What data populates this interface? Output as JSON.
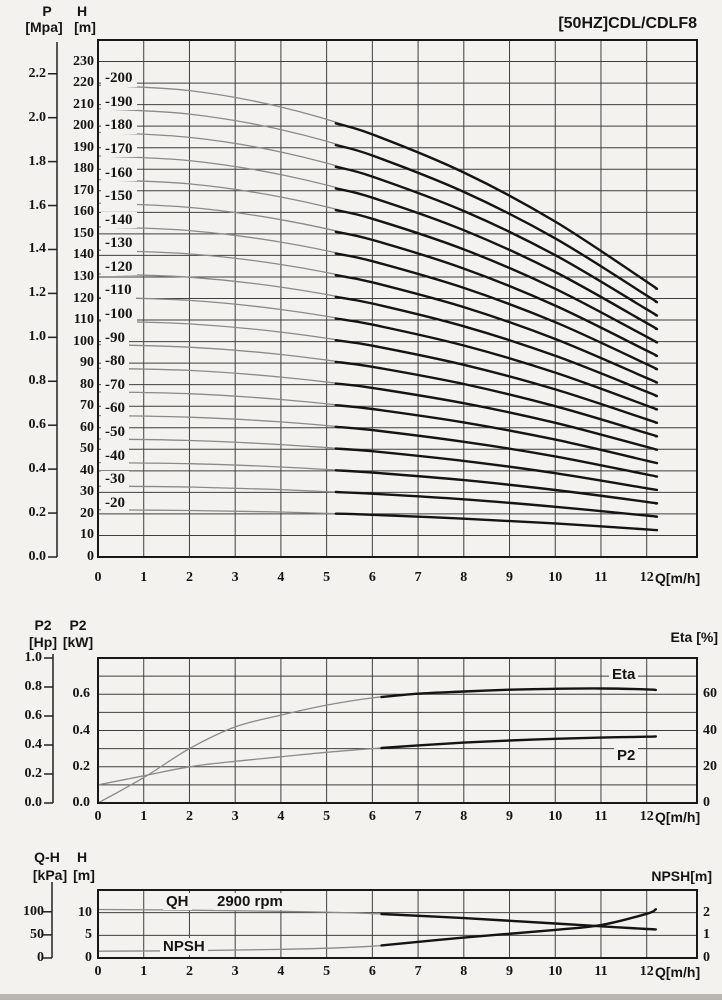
{
  "header": {
    "title": "[50HZ]CDL/CDLF8"
  },
  "colors": {
    "ink": "#141414",
    "grid": "#3f3f3f",
    "thin_curve": "#8a8a8a",
    "bold_curve": "#141414",
    "paper": "#f3f2ef"
  },
  "axes": {
    "q_label": "Q[m/h]",
    "q_ticks": [
      "0",
      "1",
      "2",
      "3",
      "4",
      "5",
      "6",
      "7",
      "8",
      "9",
      "10",
      "11",
      "12"
    ],
    "hq": {
      "p_label": "P",
      "p_unit": "[Mpa]",
      "p_ticks": [
        "0.0",
        "0.2",
        "0.4",
        "0.6",
        "0.8",
        "1.0",
        "1.2",
        "1.4",
        "1.6",
        "1.8",
        "2.0",
        "2.2"
      ],
      "h_label": "H",
      "h_unit": "[m]",
      "h_ticks": [
        "0",
        "10",
        "20",
        "30",
        "40",
        "50",
        "60",
        "70",
        "80",
        "90",
        "100",
        "110",
        "120",
        "130",
        "140",
        "150",
        "160",
        "170",
        "180",
        "190",
        "200",
        "210",
        "220",
        "230"
      ]
    },
    "power": {
      "hp_label": "P2",
      "hp_unit": "[Hp]",
      "hp_ticks": [
        "0.0",
        "0.2",
        "0.4",
        "0.6",
        "0.8",
        "1.0"
      ],
      "kw_label": "P2",
      "kw_unit": "[kW]",
      "kw_ticks": [
        "0.0",
        "0.2",
        "0.4",
        "0.6"
      ],
      "eta_label": "Eta [%]",
      "eta_ticks": [
        "0",
        "20",
        "40",
        "60"
      ]
    },
    "npsh": {
      "kpa_label": "Q-H",
      "kpa_unit": "[kPa]",
      "kpa_ticks": [
        "0",
        "50",
        "100"
      ],
      "h_label": "H",
      "h_unit": "[m]",
      "h_ticks": [
        "0",
        "5",
        "10"
      ],
      "npsh_label": "NPSH[m]",
      "npsh_ticks": [
        "0",
        "1",
        "2"
      ]
    }
  },
  "curve_labels": {
    "eta": "Eta",
    "p2": "P2",
    "qh": "QH",
    "rpm": "2900 rpm",
    "npsh": "NPSH"
  },
  "chart_data": [
    {
      "id": "hq",
      "type": "line",
      "title": "[50HZ]CDL/CDLF8",
      "xlabel": "Q[m/h]",
      "xlim": [
        0,
        13.1
      ],
      "x_ticks": [
        0,
        1,
        2,
        3,
        4,
        5,
        6,
        7,
        8,
        9,
        10,
        11,
        12
      ],
      "ylabel": "H [m] (left also P [Mpa])",
      "ylim": [
        0,
        240
      ],
      "grid_step": 10,
      "unit": "m",
      "bold_from_q": 5.2,
      "q": [
        0,
        2,
        4,
        6,
        8,
        10,
        12,
        12.2
      ],
      "series": [
        {
          "name": "-200",
          "values": [
            219.0,
            216.5,
            208.9,
            196.2,
            178.5,
            155.7,
            127.8,
            124.7
          ]
        },
        {
          "name": "-190",
          "values": [
            208.1,
            205.6,
            198.4,
            186.4,
            169.5,
            147.9,
            121.4,
            118.5
          ]
        },
        {
          "name": "-180",
          "values": [
            197.1,
            194.8,
            188.0,
            176.6,
            160.6,
            140.1,
            115.0,
            112.3
          ]
        },
        {
          "name": "-170",
          "values": [
            186.2,
            184.0,
            177.5,
            166.8,
            151.7,
            132.3,
            108.6,
            106.0
          ]
        },
        {
          "name": "-160",
          "values": [
            175.2,
            173.2,
            167.1,
            157.0,
            142.8,
            124.5,
            102.2,
            99.8
          ]
        },
        {
          "name": "-150",
          "values": [
            164.3,
            162.3,
            156.6,
            147.2,
            133.9,
            116.7,
            95.8,
            93.5
          ]
        },
        {
          "name": "-140",
          "values": [
            153.3,
            151.5,
            146.2,
            137.3,
            124.9,
            109.0,
            89.5,
            87.3
          ]
        },
        {
          "name": "-130",
          "values": [
            142.4,
            140.7,
            135.8,
            127.5,
            116.0,
            101.2,
            83.1,
            81.1
          ]
        },
        {
          "name": "-120",
          "values": [
            131.4,
            129.9,
            125.3,
            117.7,
            107.1,
            93.4,
            76.7,
            74.8
          ]
        },
        {
          "name": "-110",
          "values": [
            120.5,
            119.1,
            114.9,
            107.9,
            98.2,
            85.6,
            70.3,
            68.6
          ]
        },
        {
          "name": "-100",
          "values": [
            109.5,
            108.2,
            104.4,
            98.1,
            89.2,
            77.8,
            63.9,
            62.4
          ]
        },
        {
          "name": "-90",
          "values": [
            98.6,
            97.4,
            94.0,
            88.3,
            80.3,
            70.0,
            57.5,
            56.1
          ]
        },
        {
          "name": "-80",
          "values": [
            87.6,
            86.6,
            83.5,
            78.5,
            71.4,
            62.3,
            51.1,
            49.9
          ]
        },
        {
          "name": "-70",
          "values": [
            76.7,
            75.8,
            73.1,
            68.7,
            62.5,
            54.5,
            44.7,
            43.7
          ]
        },
        {
          "name": "-60",
          "values": [
            65.7,
            64.9,
            62.7,
            58.9,
            53.5,
            46.7,
            38.3,
            37.4
          ]
        },
        {
          "name": "-50",
          "values": [
            54.8,
            54.1,
            52.2,
            49.1,
            44.6,
            38.9,
            31.9,
            31.2
          ]
        },
        {
          "name": "-40",
          "values": [
            43.8,
            43.3,
            41.8,
            39.2,
            35.7,
            31.1,
            25.6,
            24.9
          ]
        },
        {
          "name": "-30",
          "values": [
            32.9,
            32.5,
            31.3,
            29.4,
            26.8,
            23.3,
            19.2,
            18.7
          ]
        },
        {
          "name": "-20",
          "values": [
            21.9,
            21.6,
            20.9,
            19.6,
            17.8,
            15.6,
            12.8,
            12.5
          ]
        }
      ]
    },
    {
      "id": "power_eff",
      "type": "line",
      "xlabel": "Q[m/h]",
      "xlim": [
        0,
        13.1
      ],
      "x_ticks": [
        0,
        1,
        2,
        3,
        4,
        5,
        6,
        7,
        8,
        9,
        10,
        11,
        12
      ],
      "ylim_eta": [
        0,
        80
      ],
      "ylim_kw": [
        0,
        0.8
      ],
      "ylim_hp": [
        0,
        1.0
      ],
      "grid_step_eta": 10,
      "bold_from_q": 6.2,
      "q": [
        0,
        1,
        2,
        3,
        4,
        5,
        6,
        7,
        8,
        9,
        10,
        11,
        12,
        12.2
      ],
      "series": [
        {
          "name": "Eta",
          "unit": "%",
          "values": [
            0,
            14,
            30,
            42,
            48.5,
            54,
            58,
            60.3,
            61.5,
            62.5,
            63,
            63.2,
            62.7,
            62.4
          ]
        },
        {
          "name": "P2",
          "unit": "kW",
          "values": [
            0.1,
            0.15,
            0.2,
            0.23,
            0.255,
            0.28,
            0.3,
            0.318,
            0.333,
            0.345,
            0.354,
            0.361,
            0.366,
            0.367
          ]
        }
      ]
    },
    {
      "id": "qh_npsh",
      "type": "line",
      "subtitle": "QH 2900 rpm",
      "xlabel": "Q[m/h]",
      "xlim": [
        0,
        13.1
      ],
      "x_ticks": [
        0,
        1,
        2,
        3,
        4,
        5,
        6,
        7,
        8,
        9,
        10,
        11,
        12
      ],
      "ylim_m": [
        0,
        15
      ],
      "ylim_kpa": [
        0,
        147
      ],
      "ylim_npsh": [
        0,
        3
      ],
      "grid_step_m": 5,
      "bold_from_q": 6.2,
      "q": [
        0,
        2,
        4,
        6,
        8,
        10,
        11,
        12,
        12.2
      ],
      "series": [
        {
          "name": "QH",
          "unit": "m",
          "values": [
            10.7,
            10.55,
            10.3,
            9.8,
            8.8,
            7.6,
            7.0,
            6.4,
            6.3
          ]
        },
        {
          "name": "NPSH",
          "unit": "NPSH_m",
          "values": [
            0.3,
            0.32,
            0.38,
            0.52,
            0.9,
            1.24,
            1.45,
            1.95,
            2.15
          ]
        }
      ]
    }
  ]
}
